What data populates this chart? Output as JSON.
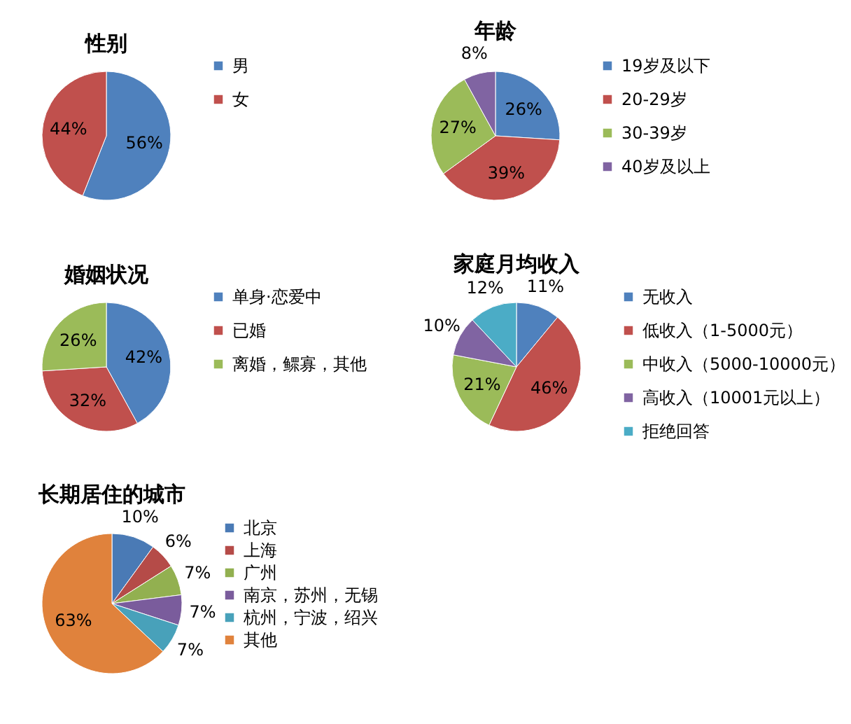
{
  "chart_data": [
    {
      "type": "pie",
      "title": "性别",
      "categories": [
        "男",
        "女"
      ],
      "values": [
        56,
        44
      ],
      "value_labels": [
        "56%",
        "44%"
      ],
      "colors": [
        "#4f81bd",
        "#c0504d"
      ],
      "legend": "right"
    },
    {
      "type": "pie",
      "title": "年龄",
      "categories": [
        "19岁及以下",
        "20-29岁",
        "30-39岁",
        "40岁及以上"
      ],
      "values": [
        26,
        39,
        27,
        8
      ],
      "value_labels": [
        "26%",
        "39%",
        "27%",
        "8%"
      ],
      "colors": [
        "#4f81bd",
        "#c0504d",
        "#9bbb59",
        "#8064a2"
      ],
      "legend": "right"
    },
    {
      "type": "pie",
      "title": "婚姻状况",
      "categories": [
        "单身·恋爱中",
        "已婚",
        "离婚，鳏寡，其他"
      ],
      "values": [
        42,
        32,
        26
      ],
      "value_labels": [
        "42%",
        "32%",
        "26%"
      ],
      "colors": [
        "#4f81bd",
        "#c0504d",
        "#9bbb59"
      ],
      "legend": "right"
    },
    {
      "type": "pie",
      "title": "家庭月均收入",
      "categories": [
        "无收入",
        "低收入（1-5000元）",
        "中收入（5000-10000元）",
        "高收入（10001元以上）",
        "拒绝回答"
      ],
      "values": [
        11,
        46,
        21,
        10,
        12
      ],
      "value_labels": [
        "11%",
        "46%",
        "21%",
        "10%",
        "12%"
      ],
      "colors": [
        "#4f81bd",
        "#c0504d",
        "#9bbb59",
        "#8064a2",
        "#4bacc6"
      ],
      "legend": "right"
    },
    {
      "type": "pie",
      "title": "长期居住的城市",
      "categories": [
        "北京",
        "上海",
        "广州",
        "南京，苏州，无锡",
        "杭州，宁波，绍兴",
        "其他"
      ],
      "values": [
        10,
        6,
        7,
        7,
        7,
        63
      ],
      "value_labels": [
        "10%",
        "6%",
        "7%",
        "7%",
        "7%",
        "63%"
      ],
      "colors": [
        "#4a7ab5",
        "#b54b48",
        "#92b050",
        "#7a5c9c",
        "#48a1ba",
        "#e0823c"
      ],
      "legend": "right"
    }
  ]
}
